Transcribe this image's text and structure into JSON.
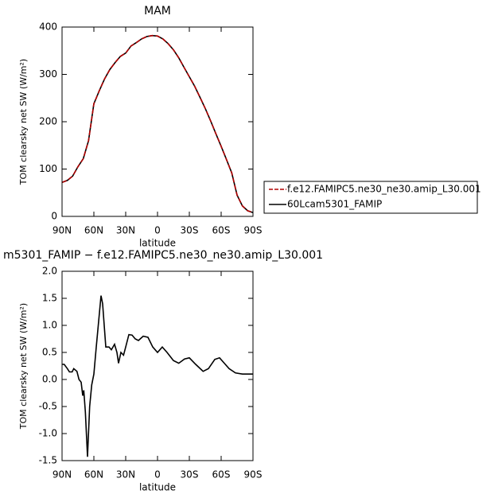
{
  "chart_data": [
    {
      "type": "line",
      "title": "MAM",
      "xlabel": "latitude",
      "ylabel": "TOM clearsky net SW (W/m²)",
      "x": [
        90,
        85,
        80,
        75,
        70,
        65,
        60,
        55,
        50,
        45,
        40,
        35,
        30,
        25,
        20,
        15,
        10,
        5,
        0,
        -5,
        -10,
        -15,
        -20,
        -25,
        -30,
        -35,
        -40,
        -45,
        -50,
        -55,
        -60,
        -65,
        -70,
        -75,
        -80,
        -85,
        -90
      ],
      "series": [
        {
          "name": "60Lcam5301_FAMIP",
          "color": "#000000",
          "dash": "solid",
          "values": [
            72,
            76,
            85,
            105,
            122,
            160,
            238,
            265,
            290,
            310,
            325,
            338,
            345,
            360,
            367,
            375,
            380,
            382,
            381,
            375,
            365,
            352,
            335,
            315,
            295,
            275,
            252,
            228,
            202,
            175,
            148,
            120,
            92,
            45,
            22,
            12,
            8
          ]
        },
        {
          "name": "f.e12.FAMIPC5.ne30_ne30.amip_L30.001",
          "color": "#b00000",
          "dash": "dashed",
          "values": [
            72,
            76,
            85,
            105,
            122,
            160,
            238,
            265,
            290,
            310,
            325,
            338,
            345,
            360,
            367,
            375,
            380,
            382,
            381,
            375,
            365,
            352,
            335,
            315,
            295,
            275,
            252,
            228,
            202,
            175,
            148,
            120,
            92,
            45,
            22,
            12,
            8
          ]
        }
      ],
      "legend_order": [
        1,
        0
      ],
      "xlim": [
        90,
        -90
      ],
      "xticks": [
        {
          "value": 90,
          "label": "90N"
        },
        {
          "value": 60,
          "label": "60N"
        },
        {
          "value": 30,
          "label": "30N"
        },
        {
          "value": 0,
          "label": "0"
        },
        {
          "value": -30,
          "label": "30S"
        },
        {
          "value": -60,
          "label": "60S"
        },
        {
          "value": -90,
          "label": "90S"
        }
      ],
      "ylim": [
        0,
        400
      ],
      "yticks": [
        0,
        100,
        200,
        300,
        400
      ]
    },
    {
      "type": "line",
      "title": "m5301_FAMIP − f.e12.FAMIPC5.ne30_ne30.amip_L30.001",
      "xlabel": "latitude",
      "ylabel": "TOM clearsky net SW (W/m²)",
      "x": [
        90,
        88,
        85,
        83,
        80.5,
        79,
        76,
        74,
        72,
        70.5,
        69.5,
        68,
        66,
        64,
        62,
        60,
        57.75,
        53.25,
        51.75,
        48.75,
        45.75,
        43.5,
        40.5,
        38.25,
        36.75,
        34.5,
        32,
        30,
        27,
        24,
        21,
        18,
        13.5,
        9,
        4.5,
        0,
        -4.5,
        -9,
        -15,
        -20,
        -25.5,
        -30,
        -36,
        -43,
        -48,
        -54,
        -58.5,
        -63,
        -67.5,
        -73.5,
        -80,
        -90
      ],
      "series": [
        {
          "color": "#000000",
          "values": [
            0.28,
            0.28,
            0.2,
            0.14,
            0.14,
            0.2,
            0.15,
            0.0,
            -0.05,
            -0.3,
            -0.2,
            -0.6,
            -1.43,
            -0.5,
            -0.1,
            0.1,
            0.6,
            1.55,
            1.4,
            0.6,
            0.6,
            0.55,
            0.65,
            0.5,
            0.3,
            0.5,
            0.45,
            0.6,
            0.83,
            0.82,
            0.75,
            0.72,
            0.8,
            0.78,
            0.6,
            0.5,
            0.6,
            0.5,
            0.35,
            0.3,
            0.38,
            0.4,
            0.28,
            0.15,
            0.2,
            0.37,
            0.4,
            0.3,
            0.2,
            0.12,
            0.1,
            0.1
          ]
        }
      ],
      "xlim": [
        90,
        -90
      ],
      "xticks": [
        {
          "value": 90,
          "label": "90N"
        },
        {
          "value": 60,
          "label": "60N"
        },
        {
          "value": 30,
          "label": "30N"
        },
        {
          "value": 0,
          "label": "0"
        },
        {
          "value": -30,
          "label": "30S"
        },
        {
          "value": -60,
          "label": "60S"
        },
        {
          "value": -90,
          "label": "90S"
        }
      ],
      "ylim": [
        -1.5,
        2.0
      ],
      "yticks": [
        {
          "value": -1.5,
          "label": "-1.5"
        },
        {
          "value": -1.0,
          "label": "-1.0"
        },
        {
          "value": -0.5,
          "label": "-0.5"
        },
        {
          "value": 0,
          "label": "0.0"
        },
        {
          "value": 0.5,
          "label": "0.5"
        },
        {
          "value": 1.0,
          "label": "1.0"
        },
        {
          "value": 1.5,
          "label": "1.5"
        },
        {
          "value": 2.0,
          "label": "2.0"
        }
      ]
    }
  ]
}
